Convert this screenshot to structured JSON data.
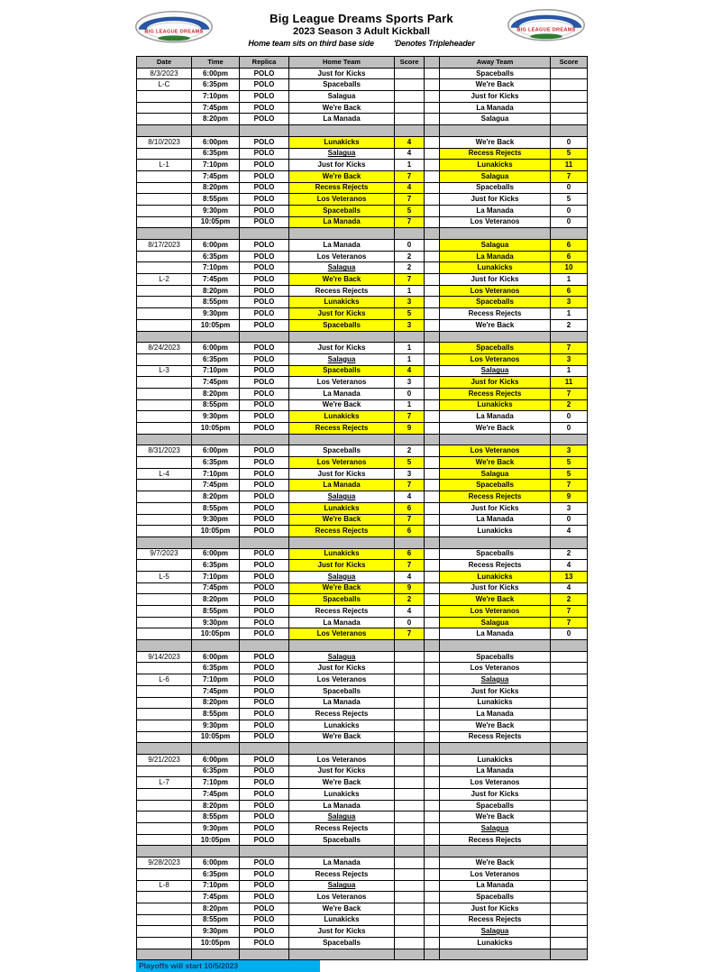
{
  "header": {
    "title": "Big League Dreams Sports Park",
    "subtitle": "2023 Season 3 Adult Kickball",
    "note_left": "Home team sits on third base side",
    "note_right": "'Denotes Tripleheader",
    "logo_text": "BIG LEAGUE DREAMS"
  },
  "footer": {
    "text": "Playoffs will start 10/5/2023"
  },
  "colors": {
    "separator_gray": "#bfbfbf",
    "highlight_yellow": "#ffff00",
    "footer_cyan": "#00aeef",
    "footer_text_blue": "#17365d",
    "logo_red": "#cc2229",
    "logo_blue": "#2a55a4",
    "logo_green": "#2e7d32"
  },
  "table": {
    "headers": [
      "Date",
      "Time",
      "Replica",
      "Home Team",
      "Score",
      "",
      "Away Team",
      "Score"
    ],
    "sections": [
      {
        "date": "8/3/2023",
        "code": "L-C",
        "code_row": 1,
        "games": [
          {
            "t": "6:00pm",
            "rep": "POLO",
            "h": "Just for Kicks",
            "hs": "",
            "a": "Spaceballs",
            "as": "",
            "w": ""
          },
          {
            "t": "6:35pm",
            "rep": "POLO",
            "h": "Spaceballs",
            "hs": "",
            "a": "We're Back",
            "as": "",
            "w": ""
          },
          {
            "t": "7:10pm",
            "rep": "POLO",
            "h": "Salagua",
            "hs": "",
            "a": "Just for Kicks",
            "as": "",
            "w": ""
          },
          {
            "t": "7:45pm",
            "rep": "POLO",
            "h": "We're Back",
            "hs": "",
            "a": "La Manada",
            "as": "",
            "w": ""
          },
          {
            "t": "8:20pm",
            "rep": "POLO",
            "h": "La Manada",
            "hs": "",
            "a": "Salagua",
            "as": "",
            "w": ""
          }
        ]
      },
      {
        "date": "8/10/2023",
        "code": "L-1",
        "code_row": 2,
        "games": [
          {
            "t": "6:00pm",
            "rep": "POLO",
            "h": "Lunakicks",
            "hs": "4",
            "a": "We're Back",
            "as": "0",
            "w": "h"
          },
          {
            "t": "6:35pm",
            "rep": "POLO",
            "h": "Salagua",
            "hs": "4",
            "a": "Recess Rejects",
            "as": "5",
            "w": "a",
            "hu": true
          },
          {
            "t": "7:10pm",
            "rep": "POLO",
            "h": "Just for Kicks",
            "hs": "1",
            "a": "Lunakicks",
            "as": "11",
            "w": "a"
          },
          {
            "t": "7:45pm",
            "rep": "POLO",
            "h": "We're Back",
            "hs": "7",
            "a": "Salagua",
            "as": "7",
            "w": "b"
          },
          {
            "t": "8:20pm",
            "rep": "POLO",
            "h": "Recess Rejects",
            "hs": "4",
            "a": "Spaceballs",
            "as": "0",
            "w": "h"
          },
          {
            "t": "8:55pm",
            "rep": "POLO",
            "h": "Los Veteranos",
            "hs": "7",
            "a": "Just for Kicks",
            "as": "5",
            "w": "h"
          },
          {
            "t": "9:30pm",
            "rep": "POLO",
            "h": "Spaceballs",
            "hs": "5",
            "a": "La Manada",
            "as": "0",
            "w": "h"
          },
          {
            "t": "10:05pm",
            "rep": "POLO",
            "h": "La Manada",
            "hs": "7",
            "a": "Los Veteranos",
            "as": "0",
            "w": "h"
          }
        ]
      },
      {
        "date": "8/17/2023",
        "code": "L-2",
        "code_row": 3,
        "games": [
          {
            "t": "6:00pm",
            "rep": "POLO",
            "h": "La Manada",
            "hs": "0",
            "a": "Salagua",
            "as": "6",
            "w": "a"
          },
          {
            "t": "6:35pm",
            "rep": "POLO",
            "h": "Los Veteranos",
            "hs": "2",
            "a": "La Manada",
            "as": "6",
            "w": "a"
          },
          {
            "t": "7:10pm",
            "rep": "POLO",
            "h": "Salagua",
            "hs": "2",
            "a": "Lunakicks",
            "as": "10",
            "w": "a",
            "hu": true
          },
          {
            "t": "7:45pm",
            "rep": "POLO",
            "h": "We're Back",
            "hs": "7",
            "a": "Just for Kicks",
            "as": "1",
            "w": "h"
          },
          {
            "t": "8:20pm",
            "rep": "POLO",
            "h": "Recess Rejects",
            "hs": "1",
            "a": "Los Veteranos",
            "as": "6",
            "w": "a"
          },
          {
            "t": "8:55pm",
            "rep": "POLO",
            "h": "Lunakicks",
            "hs": "3",
            "a": "Spaceballs",
            "as": "3",
            "w": "b"
          },
          {
            "t": "9:30pm",
            "rep": "POLO",
            "h": "Just for Kicks",
            "hs": "5",
            "a": "Recess Rejects",
            "as": "1",
            "w": "h"
          },
          {
            "t": "10:05pm",
            "rep": "POLO",
            "h": "Spaceballs",
            "hs": "3",
            "a": "We're Back",
            "as": "2",
            "w": "h"
          }
        ]
      },
      {
        "date": "8/24/2023",
        "code": "L-3",
        "code_row": 2,
        "games": [
          {
            "t": "6:00pm",
            "rep": "POLO",
            "h": "Just for Kicks",
            "hs": "1",
            "a": "Spaceballs",
            "as": "7",
            "w": "a"
          },
          {
            "t": "6:35pm",
            "rep": "POLO",
            "h": "Salagua",
            "hs": "1",
            "a": "Los Veteranos",
            "as": "3",
            "w": "a",
            "hu": true
          },
          {
            "t": "7:10pm",
            "rep": "POLO",
            "h": "Spaceballs",
            "hs": "4",
            "a": "Salagua",
            "as": "1",
            "w": "h",
            "au": true
          },
          {
            "t": "7:45pm",
            "rep": "POLO",
            "h": "Los Veteranos",
            "hs": "3",
            "a": "Just for Kicks",
            "as": "11",
            "w": "a"
          },
          {
            "t": "8:20pm",
            "rep": "POLO",
            "h": "La Manada",
            "hs": "0",
            "a": "Recess Rejects",
            "as": "7",
            "w": "a"
          },
          {
            "t": "8:55pm",
            "rep": "POLO",
            "h": "We're Back",
            "hs": "1",
            "a": "Lunakicks",
            "as": "2",
            "w": "a"
          },
          {
            "t": "9:30pm",
            "rep": "POLO",
            "h": "Lunakicks",
            "hs": "7",
            "a": "La Manada",
            "as": "0",
            "w": "h"
          },
          {
            "t": "10:05pm",
            "rep": "POLO",
            "h": "Recess Rejects",
            "hs": "9",
            "a": "We're Back",
            "as": "0",
            "w": "h"
          }
        ]
      },
      {
        "date": "8/31/2023",
        "code": "L-4",
        "code_row": 2,
        "games": [
          {
            "t": "6:00pm",
            "rep": "POLO",
            "h": "Spaceballs",
            "hs": "2",
            "a": "Los Veteranos",
            "as": "3",
            "w": "a"
          },
          {
            "t": "6:35pm",
            "rep": "POLO",
            "h": "Los Veteranos",
            "hs": "5",
            "a": "We're Back",
            "as": "5",
            "w": "b"
          },
          {
            "t": "7:10pm",
            "rep": "POLO",
            "h": "Just for Kicks",
            "hs": "3",
            "a": "Salagua",
            "as": "5",
            "w": "a"
          },
          {
            "t": "7:45pm",
            "rep": "POLO",
            "h": "La Manada",
            "hs": "7",
            "a": "Spaceballs",
            "as": "7",
            "w": "b"
          },
          {
            "t": "8:20pm",
            "rep": "POLO",
            "h": "Salagua",
            "hs": "4",
            "a": "Recess Rejects",
            "as": "9",
            "w": "a",
            "hu": true
          },
          {
            "t": "8:55pm",
            "rep": "POLO",
            "h": "Lunakicks",
            "hs": "6",
            "a": "Just for Kicks",
            "as": "3",
            "w": "h"
          },
          {
            "t": "9:30pm",
            "rep": "POLO",
            "h": "We're Back",
            "hs": "7",
            "a": "La Manada",
            "as": "0",
            "w": "h"
          },
          {
            "t": "10:05pm",
            "rep": "POLO",
            "h": "Recess Rejects",
            "hs": "6",
            "a": "Lunakicks",
            "as": "4",
            "w": "h"
          }
        ]
      },
      {
        "date": "9/7/2023",
        "code": "L-5",
        "code_row": 2,
        "games": [
          {
            "t": "6:00pm",
            "rep": "POLO",
            "h": "Lunakicks",
            "hs": "6",
            "a": "Spaceballs",
            "as": "2",
            "w": "h"
          },
          {
            "t": "6:35pm",
            "rep": "POLO",
            "h": "Just for Kicks",
            "hs": "7",
            "a": "Recess Rejects",
            "as": "4",
            "w": "h"
          },
          {
            "t": "7:10pm",
            "rep": "POLO",
            "h": "Salagua",
            "hs": "4",
            "a": "Lunakicks",
            "as": "13",
            "w": "a",
            "hu": true
          },
          {
            "t": "7:45pm",
            "rep": "POLO",
            "h": "We're Back",
            "hs": "9",
            "a": "Just for Kicks",
            "as": "4",
            "w": "h"
          },
          {
            "t": "8:20pm",
            "rep": "POLO",
            "h": "Spaceballs",
            "hs": "2",
            "a": "We're Back",
            "as": "2",
            "w": "b"
          },
          {
            "t": "8:55pm",
            "rep": "POLO",
            "h": "Recess Rejects",
            "hs": "4",
            "a": "Los Veteranos",
            "as": "7",
            "w": "a"
          },
          {
            "t": "9:30pm",
            "rep": "POLO",
            "h": "La Manada",
            "hs": "0",
            "a": "Salagua",
            "as": "7",
            "w": "a"
          },
          {
            "t": "10:05pm",
            "rep": "POLO",
            "h": "Los Veteranos",
            "hs": "7",
            "a": "La Manada",
            "as": "0",
            "w": "h"
          }
        ]
      },
      {
        "date": "9/14/2023",
        "code": "L-6",
        "code_row": 2,
        "games": [
          {
            "t": "6:00pm",
            "rep": "POLO",
            "h": "Salagua",
            "hs": "",
            "a": "Spaceballs",
            "as": "",
            "w": "",
            "hu": true
          },
          {
            "t": "6:35pm",
            "rep": "POLO",
            "h": "Just for Kicks",
            "hs": "",
            "a": "Los Veteranos",
            "as": "",
            "w": ""
          },
          {
            "t": "7:10pm",
            "rep": "POLO",
            "h": "Los Veteranos",
            "hs": "",
            "a": "Salagua",
            "as": "",
            "w": "",
            "au": true
          },
          {
            "t": "7:45pm",
            "rep": "POLO",
            "h": "Spaceballs",
            "hs": "",
            "a": "Just for Kicks",
            "as": "",
            "w": ""
          },
          {
            "t": "8:20pm",
            "rep": "POLO",
            "h": "La Manada",
            "hs": "",
            "a": "Lunakicks",
            "as": "",
            "w": ""
          },
          {
            "t": "8:55pm",
            "rep": "POLO",
            "h": "Recess Rejects",
            "hs": "",
            "a": "La Manada",
            "as": "",
            "w": ""
          },
          {
            "t": "9:30pm",
            "rep": "POLO",
            "h": "Lunakicks",
            "hs": "",
            "a": "We're Back",
            "as": "",
            "w": ""
          },
          {
            "t": "10:05pm",
            "rep": "POLO",
            "h": "We're Back",
            "hs": "",
            "a": "Recess Rejects",
            "as": "",
            "w": ""
          }
        ]
      },
      {
        "date": "9/21/2023",
        "code": "L-7",
        "code_row": 2,
        "games": [
          {
            "t": "6:00pm",
            "rep": "POLO",
            "h": "Los Veteranos",
            "hs": "",
            "a": "Lunakicks",
            "as": "",
            "w": ""
          },
          {
            "t": "6:35pm",
            "rep": "POLO",
            "h": "Just for Kicks",
            "hs": "",
            "a": "La Manada",
            "as": "",
            "w": ""
          },
          {
            "t": "7:10pm",
            "rep": "POLO",
            "h": "We're Back",
            "hs": "",
            "a": "Los Veteranos",
            "as": "",
            "w": ""
          },
          {
            "t": "7:45pm",
            "rep": "POLO",
            "h": "Lunakicks",
            "hs": "",
            "a": "Just for Kicks",
            "as": "",
            "w": ""
          },
          {
            "t": "8:20pm",
            "rep": "POLO",
            "h": "La Manada",
            "hs": "",
            "a": "Spaceballs",
            "as": "",
            "w": ""
          },
          {
            "t": "8:55pm",
            "rep": "POLO",
            "h": "Salagua",
            "hs": "",
            "a": "We're Back",
            "as": "",
            "w": "",
            "hu": true
          },
          {
            "t": "9:30pm",
            "rep": "POLO",
            "h": "Recess Rejects",
            "hs": "",
            "a": "Salagua",
            "as": "",
            "w": "",
            "au": true
          },
          {
            "t": "10:05pm",
            "rep": "POLO",
            "h": "Spaceballs",
            "hs": "",
            "a": "Recess Rejects",
            "as": "",
            "w": ""
          }
        ]
      },
      {
        "date": "9/28/2023",
        "code": "L-8",
        "code_row": 2,
        "games": [
          {
            "t": "6:00pm",
            "rep": "POLO",
            "h": "La Manada",
            "hs": "",
            "a": "We're Back",
            "as": "",
            "w": ""
          },
          {
            "t": "6:35pm",
            "rep": "POLO",
            "h": "Recess Rejects",
            "hs": "",
            "a": "Los Veteranos",
            "as": "",
            "w": ""
          },
          {
            "t": "7:10pm",
            "rep": "POLO",
            "h": "Salagua",
            "hs": "",
            "a": "La Manada",
            "as": "",
            "w": "",
            "hu": true
          },
          {
            "t": "7:45pm",
            "rep": "POLO",
            "h": "Los Veteranos",
            "hs": "",
            "a": "Spaceballs",
            "as": "",
            "w": ""
          },
          {
            "t": "8:20pm",
            "rep": "POLO",
            "h": "We're Back",
            "hs": "",
            "a": "Just for Kicks",
            "as": "",
            "w": ""
          },
          {
            "t": "8:55pm",
            "rep": "POLO",
            "h": "Lunakicks",
            "hs": "",
            "a": "Recess Rejects",
            "as": "",
            "w": ""
          },
          {
            "t": "9:30pm",
            "rep": "POLO",
            "h": "Just for Kicks",
            "hs": "",
            "a": "Salagua",
            "as": "",
            "w": "",
            "au": true
          },
          {
            "t": "10:05pm",
            "rep": "POLO",
            "h": "Spaceballs",
            "hs": "",
            "a": "Lunakicks",
            "as": "",
            "w": ""
          }
        ]
      }
    ]
  }
}
